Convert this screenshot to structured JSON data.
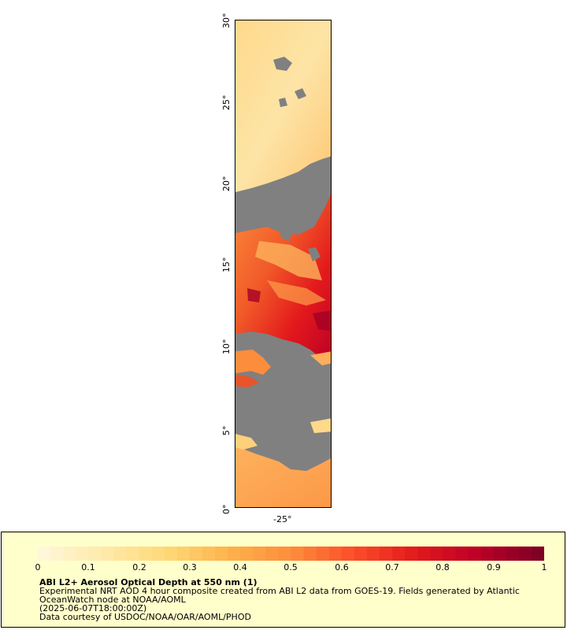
{
  "map": {
    "lat_labels": [
      "30°",
      "25°",
      "20°",
      "15°",
      "10°",
      "5°",
      "0°"
    ],
    "lon_labels": [
      "-25°"
    ],
    "cloud_mask_color": "#808080",
    "palette": [
      "#fff7d8",
      "#ffe9a8",
      "#fed976",
      "#feb24c",
      "#fd8d3c",
      "#fc4e2a",
      "#e31a1c",
      "#bd0026",
      "#800026"
    ]
  },
  "legend": {
    "tick_labels": [
      "0",
      "0.1",
      "0.2",
      "0.3",
      "0.4",
      "0.5",
      "0.6",
      "0.7",
      "0.8",
      "0.9",
      "1"
    ],
    "title": "ABI L2+ Aerosol Optical Depth at 550 nm (1)",
    "line1": "Experimental NRT AOD 4 hour composite created from ABI L2 data from GOES-19. Fields generated by Atlantic",
    "line2": "OceanWatch node at NOAA/AOML",
    "line3": "(2025-06-07T18:00:00Z)",
    "line4": "Data courtesy of USDOC/NOAA/OAR/AOML/PHOD"
  }
}
